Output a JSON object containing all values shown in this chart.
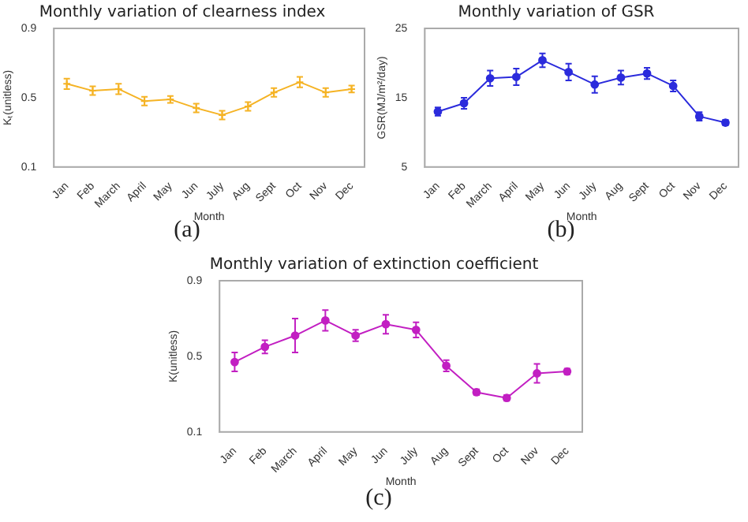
{
  "chart_data": [
    {
      "type": "line",
      "title": "Monthly variation of clearness index",
      "xlabel": "Month",
      "ylabel": "Kₜ(unitless)",
      "annotations": [
        "(a)"
      ],
      "categories": [
        "Jan",
        "Feb",
        "March",
        "April",
        "May",
        "Jun",
        "July",
        "Aug",
        "Sept",
        "Oct",
        "Nov",
        "Dec"
      ],
      "series": [
        {
          "color": "#f5b324",
          "values": [
            0.58,
            0.54,
            0.55,
            0.48,
            0.49,
            0.44,
            0.4,
            0.45,
            0.53,
            0.59,
            0.53,
            0.55
          ],
          "errors": [
            0.03,
            0.025,
            0.03,
            0.025,
            0.02,
            0.025,
            0.025,
            0.025,
            0.025,
            0.03,
            0.025,
            0.02
          ]
        }
      ],
      "ylim": [
        0.1,
        0.9
      ],
      "yticks": [
        0.1,
        0.5,
        0.9
      ],
      "grid": false,
      "legend": false,
      "marker": "cross",
      "line_style": "solid"
    },
    {
      "type": "line",
      "title": "Monthly variation of GSR",
      "xlabel": "Month",
      "ylabel": "GSR(MJ/m²/day)",
      "annotations": [
        "(b)"
      ],
      "categories": [
        "Jan",
        "Feb",
        "March",
        "April",
        "May",
        "Jun",
        "July",
        "Aug",
        "Sept",
        "Oct",
        "Nov",
        "Dec"
      ],
      "series": [
        {
          "color": "#2b2bdc",
          "values": [
            13,
            14.2,
            17.8,
            18.0,
            20.4,
            18.7,
            16.9,
            17.9,
            18.5,
            16.7,
            12.3,
            11.4
          ],
          "errors": [
            0.6,
            0.8,
            1.1,
            1.2,
            1.0,
            1.2,
            1.2,
            1.0,
            0.8,
            0.8,
            0.6,
            0.4
          ]
        }
      ],
      "ylim": [
        5,
        25
      ],
      "yticks": [
        5,
        15,
        25
      ],
      "grid": false,
      "legend": false,
      "marker": "circle",
      "line_style": "solid"
    },
    {
      "type": "line",
      "title": "Monthly variation of extinction coefficient",
      "xlabel": "Month",
      "ylabel": "K(unitless)",
      "annotations": [
        "(c)"
      ],
      "categories": [
        "Jan",
        "Feb",
        "March",
        "April",
        "May",
        "Jun",
        "July",
        "Aug",
        "Sept",
        "Oct",
        "Nov",
        "Dec"
      ],
      "series": [
        {
          "color": "#c21fc2",
          "values": [
            0.47,
            0.55,
            0.61,
            0.69,
            0.61,
            0.67,
            0.64,
            0.45,
            0.31,
            0.28,
            0.41,
            0.42
          ],
          "errors": [
            0.05,
            0.035,
            0.09,
            0.055,
            0.03,
            0.05,
            0.04,
            0.03,
            0.015,
            0.015,
            0.05,
            0.015
          ]
        }
      ],
      "ylim": [
        0.1,
        0.9
      ],
      "yticks": [
        0.1,
        0.5,
        0.9
      ],
      "grid": false,
      "legend": false,
      "marker": "circle",
      "line_style": "solid"
    }
  ]
}
